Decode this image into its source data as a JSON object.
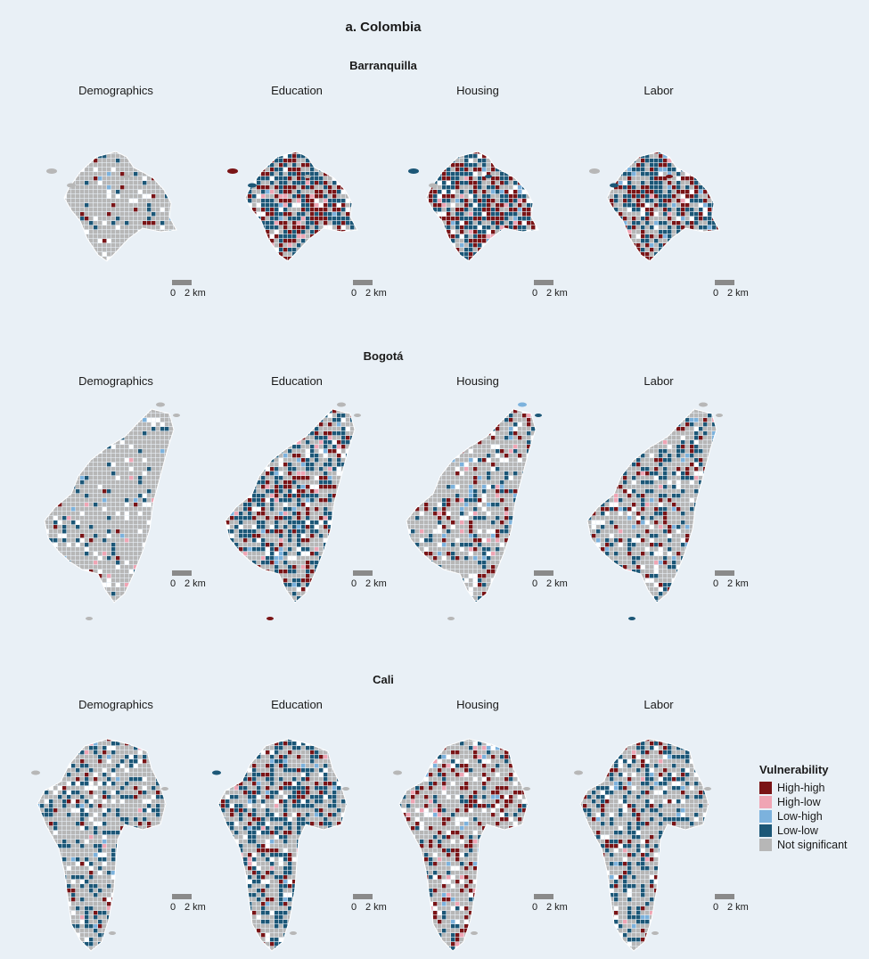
{
  "title": "a. Colombia",
  "categories": [
    "Demographics",
    "Education",
    "Housing",
    "Labor"
  ],
  "scale": {
    "zero": "0",
    "distance": "2 km"
  },
  "legend": {
    "title": "Vulnerability",
    "items": [
      {
        "label": "High-high",
        "color": "#7a1416"
      },
      {
        "label": "High-low",
        "color": "#f0a5b4"
      },
      {
        "label": "Low-high",
        "color": "#7cb2dd"
      },
      {
        "label": "Low-low",
        "color": "#1c5777"
      },
      {
        "label": "Not significant",
        "color": "#b7b7b7"
      }
    ]
  },
  "cities": [
    {
      "name": "Barranquilla",
      "panels": [
        {
          "category": "Demographics",
          "mix": [
            0.06,
            0.0,
            0.01,
            0.06,
            0.87
          ]
        },
        {
          "category": "Education",
          "mix": [
            0.3,
            0.03,
            0.01,
            0.38,
            0.28
          ]
        },
        {
          "category": "Housing",
          "mix": [
            0.28,
            0.04,
            0.03,
            0.4,
            0.25
          ]
        },
        {
          "category": "Labor",
          "mix": [
            0.28,
            0.01,
            0.04,
            0.38,
            0.29
          ]
        }
      ]
    },
    {
      "name": "Bogotá",
      "panels": [
        {
          "category": "Demographics",
          "mix": [
            0.02,
            0.02,
            0.01,
            0.06,
            0.89
          ]
        },
        {
          "category": "Education",
          "mix": [
            0.16,
            0.03,
            0.04,
            0.35,
            0.42
          ]
        },
        {
          "category": "Housing",
          "mix": [
            0.11,
            0.02,
            0.03,
            0.16,
            0.68
          ]
        },
        {
          "category": "Labor",
          "mix": [
            0.1,
            0.02,
            0.03,
            0.18,
            0.67
          ]
        }
      ]
    },
    {
      "name": "Cali",
      "panels": [
        {
          "category": "Demographics",
          "mix": [
            0.06,
            0.01,
            0.02,
            0.24,
            0.67
          ]
        },
        {
          "category": "Education",
          "mix": [
            0.11,
            0.01,
            0.03,
            0.34,
            0.51
          ]
        },
        {
          "category": "Housing",
          "mix": [
            0.18,
            0.03,
            0.03,
            0.1,
            0.66
          ]
        },
        {
          "category": "Labor",
          "mix": [
            0.08,
            0.01,
            0.02,
            0.27,
            0.62
          ]
        }
      ]
    }
  ]
}
